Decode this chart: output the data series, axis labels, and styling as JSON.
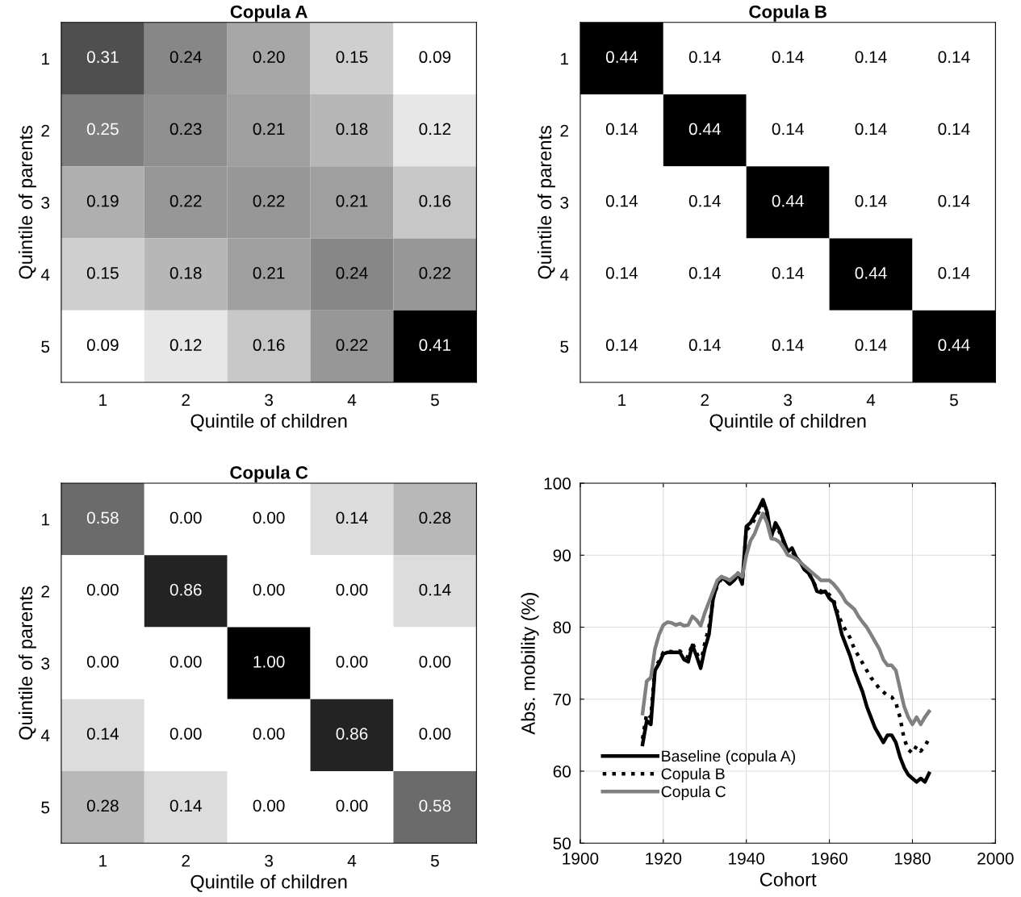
{
  "chart_data": [
    {
      "type": "heatmap",
      "title": "Copula A",
      "xlabel": "Quintile of children",
      "ylabel": "Quintile of parents",
      "categories": [
        "1",
        "2",
        "3",
        "4",
        "5"
      ],
      "y_categories": [
        "1",
        "2",
        "3",
        "4",
        "5"
      ],
      "cells": [
        [
          0.31,
          0.24,
          0.2,
          0.15,
          0.09
        ],
        [
          0.25,
          0.23,
          0.21,
          0.18,
          0.12
        ],
        [
          0.19,
          0.22,
          0.22,
          0.21,
          0.16
        ],
        [
          0.15,
          0.18,
          0.21,
          0.24,
          0.22
        ],
        [
          0.09,
          0.12,
          0.16,
          0.22,
          0.41
        ]
      ],
      "cell_labels": [
        [
          "0.31",
          "0.24",
          "0.20",
          "0.15",
          "0.09"
        ],
        [
          "0.25",
          "0.23",
          "0.21",
          "0.18",
          "0.12"
        ],
        [
          "0.19",
          "0.22",
          "0.22",
          "0.21",
          "0.16"
        ],
        [
          "0.15",
          "0.18",
          "0.21",
          "0.24",
          "0.22"
        ],
        [
          "0.09",
          "0.12",
          "0.16",
          "0.22",
          "0.41"
        ]
      ]
    },
    {
      "type": "heatmap",
      "title": "Copula B",
      "xlabel": "Quintile of children",
      "ylabel": "Quintile of parents",
      "categories": [
        "1",
        "2",
        "3",
        "4",
        "5"
      ],
      "y_categories": [
        "1",
        "2",
        "3",
        "4",
        "5"
      ],
      "cells": [
        [
          0.44,
          0.14,
          0.14,
          0.14,
          0.14
        ],
        [
          0.14,
          0.44,
          0.14,
          0.14,
          0.14
        ],
        [
          0.14,
          0.14,
          0.44,
          0.14,
          0.14
        ],
        [
          0.14,
          0.14,
          0.14,
          0.44,
          0.14
        ],
        [
          0.14,
          0.14,
          0.14,
          0.14,
          0.44
        ]
      ],
      "cell_labels": [
        [
          "0.44",
          "0.14",
          "0.14",
          "0.14",
          "0.14"
        ],
        [
          "0.14",
          "0.44",
          "0.14",
          "0.14",
          "0.14"
        ],
        [
          "0.14",
          "0.14",
          "0.44",
          "0.14",
          "0.14"
        ],
        [
          "0.14",
          "0.14",
          "0.14",
          "0.44",
          "0.14"
        ],
        [
          "0.14",
          "0.14",
          "0.14",
          "0.14",
          "0.44"
        ]
      ]
    },
    {
      "type": "heatmap",
      "title": "Copula C",
      "xlabel": "Quintile of children",
      "ylabel": "Quintile of parents",
      "categories": [
        "1",
        "2",
        "3",
        "4",
        "5"
      ],
      "y_categories": [
        "1",
        "2",
        "3",
        "4",
        "5"
      ],
      "cells": [
        [
          0.58,
          0.0,
          0.0,
          0.14,
          0.28
        ],
        [
          0.0,
          0.86,
          0.0,
          0.0,
          0.14
        ],
        [
          0.0,
          0.0,
          1.0,
          0.0,
          0.0
        ],
        [
          0.14,
          0.0,
          0.0,
          0.86,
          0.0
        ],
        [
          0.28,
          0.14,
          0.0,
          0.0,
          0.58
        ]
      ],
      "cell_labels": [
        [
          "0.58",
          "0.00",
          "0.00",
          "0.14",
          "0.28"
        ],
        [
          "0.00",
          "0.86",
          "0.00",
          "0.00",
          "0.14"
        ],
        [
          "0.00",
          "0.00",
          "1.00",
          "0.00",
          "0.00"
        ],
        [
          "0.14",
          "0.00",
          "0.00",
          "0.86",
          "0.00"
        ],
        [
          "0.28",
          "0.14",
          "0.00",
          "0.00",
          "0.58"
        ]
      ]
    },
    {
      "type": "line",
      "xlabel": "Cohort",
      "ylabel": "Abs. mobility (%)",
      "xlim": [
        1900,
        2000
      ],
      "xticks": [
        1900,
        1920,
        1940,
        1960,
        1980,
        2000
      ],
      "ylim": [
        50,
        100
      ],
      "yticks": [
        50,
        60,
        70,
        80,
        90,
        100
      ],
      "grid": true,
      "legend": "bottom left",
      "x": [
        1915,
        1916,
        1917,
        1918,
        1919,
        1920,
        1921,
        1922,
        1923,
        1924,
        1925,
        1926,
        1927,
        1928,
        1929,
        1930,
        1931,
        1932,
        1933,
        1934,
        1935,
        1936,
        1937,
        1938,
        1939,
        1940,
        1941,
        1942,
        1943,
        1944,
        1945,
        1946,
        1947,
        1948,
        1949,
        1950,
        1951,
        1952,
        1953,
        1954,
        1955,
        1956,
        1957,
        1958,
        1959,
        1960,
        1961,
        1962,
        1963,
        1964,
        1965,
        1966,
        1967,
        1968,
        1969,
        1970,
        1971,
        1972,
        1973,
        1974,
        1975,
        1976,
        1977,
        1978,
        1979,
        1980,
        1981,
        1982,
        1983,
        1984
      ],
      "series": [
        {
          "name": "Baseline (copula A)",
          "color": "#000000",
          "line_style": "solid",
          "values": [
            63.7,
            67,
            66.5,
            74,
            75,
            76.3,
            76.5,
            76.5,
            76.5,
            76.5,
            75.5,
            75.2,
            77.5,
            76,
            74.3,
            77,
            79,
            84,
            86,
            87,
            86.5,
            86,
            86.5,
            87.5,
            86,
            94,
            94.5,
            95.5,
            96.5,
            97.7,
            96,
            92.5,
            94.5,
            93.5,
            92,
            90.5,
            91,
            89.7,
            89,
            88,
            87.5,
            86.5,
            85,
            84.8,
            85,
            84,
            83.5,
            81.5,
            79,
            77.5,
            76,
            74,
            72.5,
            71,
            69,
            67.5,
            66,
            65,
            64,
            65,
            65,
            64,
            62,
            60.5,
            59.5,
            59,
            58.5,
            59,
            58.5,
            59.7
          ]
        },
        {
          "name": "Copula B",
          "color": "#000000",
          "line_style": "dotted",
          "values": [
            64.5,
            68,
            67.5,
            74.5,
            75.3,
            76.5,
            76.7,
            76.6,
            76.6,
            76.7,
            76,
            75.8,
            77.8,
            76.5,
            75,
            77.8,
            80,
            84,
            85.8,
            86.7,
            86.5,
            86,
            86.5,
            87.2,
            86.3,
            93.5,
            94,
            95,
            96,
            97,
            95.5,
            92.8,
            94,
            93.2,
            91.8,
            90.5,
            90.6,
            89.6,
            89,
            88,
            87.5,
            86.5,
            85.3,
            85,
            85,
            84.5,
            83.8,
            82,
            80.5,
            79.5,
            78.5,
            77,
            76,
            75,
            74,
            73,
            72.3,
            71.5,
            71,
            70.5,
            70.3,
            69.5,
            67.5,
            64.5,
            63,
            62.5,
            63.5,
            62.8,
            63.5,
            64.5
          ]
        },
        {
          "name": "Copula C",
          "color": "#808080",
          "line_style": "solid",
          "values": [
            68,
            72.5,
            73,
            77,
            79,
            80.3,
            80.7,
            80.6,
            80.3,
            80.5,
            80.2,
            80.3,
            81.5,
            81,
            80.2,
            82,
            83.5,
            85,
            86.5,
            87,
            86.8,
            86.5,
            87,
            87.5,
            87,
            90,
            92,
            93,
            94.5,
            95.8,
            94.5,
            92.3,
            92.2,
            91.8,
            91,
            90,
            89.8,
            89.5,
            89,
            88.5,
            88,
            87.5,
            87,
            86.5,
            86.5,
            86.5,
            86,
            85.3,
            84.5,
            83.5,
            83,
            82.5,
            81.5,
            80.7,
            80,
            79,
            78,
            77,
            75.5,
            74.7,
            74.7,
            74,
            71.5,
            69,
            67.5,
            66.5,
            67.5,
            66.5,
            67.5,
            68.3
          ]
        }
      ]
    }
  ]
}
